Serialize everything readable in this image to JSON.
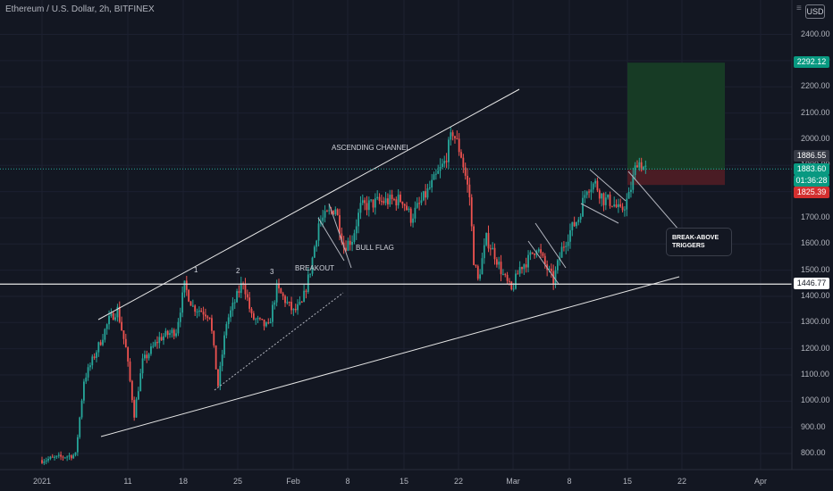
{
  "header": {
    "title": "Ethereum / U.S. Dollar, 2h, BITFINEX",
    "currency_button": "USD",
    "menu_icon": "hamburger-icon"
  },
  "chart_data": {
    "type": "candlestick",
    "symbol": "Ethereum / U.S. Dollar",
    "interval": "2h",
    "exchange": "BITFINEX",
    "y_ticks": [
      800,
      900,
      1000,
      1100,
      1200,
      1300,
      1400,
      1500,
      1600,
      1700,
      1800,
      1900,
      2000,
      2100,
      2200,
      2300,
      2400
    ],
    "y_tick_labels": [
      "800.00",
      "900.00",
      "1000.00",
      "1100.00",
      "1200.00",
      "1300.00",
      "1400.00",
      "1500.00",
      "1600.00",
      "1700.00",
      "1800.00",
      "1900.00",
      "2000.00",
      "2100.00",
      "2200.00",
      "2300.00",
      "2400.00"
    ],
    "ylim": [
      758,
      2590
    ],
    "x_ticks": [
      "2021",
      "11",
      "18",
      "25",
      "Feb",
      "8",
      "15",
      "22",
      "Mar",
      "8",
      "15",
      "22",
      "Apr"
    ],
    "anchors": [
      {
        "d": 0,
        "p": 775
      },
      {
        "d": 4,
        "p": 795
      },
      {
        "d": 5,
        "p": 1080
      },
      {
        "d": 7,
        "p": 1230
      },
      {
        "d": 8,
        "p": 1310
      },
      {
        "d": 9,
        "p": 1350
      },
      {
        "d": 10,
        "p": 1200
      },
      {
        "d": 11,
        "p": 950
      },
      {
        "d": 12,
        "p": 1150
      },
      {
        "d": 14,
        "p": 1240
      },
      {
        "d": 16,
        "p": 1270
      },
      {
        "d": 17,
        "p": 1440
      },
      {
        "d": 18,
        "p": 1360
      },
      {
        "d": 20,
        "p": 1330
      },
      {
        "d": 21,
        "p": 1060
      },
      {
        "d": 22,
        "p": 1300
      },
      {
        "d": 24,
        "p": 1460
      },
      {
        "d": 25,
        "p": 1320
      },
      {
        "d": 27,
        "p": 1280
      },
      {
        "d": 28,
        "p": 1430
      },
      {
        "d": 30,
        "p": 1340
      },
      {
        "d": 31,
        "p": 1370
      },
      {
        "d": 32,
        "p": 1500
      },
      {
        "d": 33,
        "p": 1680
      },
      {
        "d": 35,
        "p": 1740
      },
      {
        "d": 36,
        "p": 1590
      },
      {
        "d": 37,
        "p": 1620
      },
      {
        "d": 38,
        "p": 1740
      },
      {
        "d": 40,
        "p": 1760
      },
      {
        "d": 43,
        "p": 1770
      },
      {
        "d": 44,
        "p": 1700
      },
      {
        "d": 46,
        "p": 1800
      },
      {
        "d": 48,
        "p": 1910
      },
      {
        "d": 49,
        "p": 2030
      },
      {
        "d": 50,
        "p": 1940
      },
      {
        "d": 51,
        "p": 1780
      },
      {
        "d": 51.5,
        "p": 1540
      },
      {
        "d": 52,
        "p": 1460
      },
      {
        "d": 53,
        "p": 1620
      },
      {
        "d": 54,
        "p": 1560
      },
      {
        "d": 55,
        "p": 1480
      },
      {
        "d": 56,
        "p": 1420
      },
      {
        "d": 57,
        "p": 1510
      },
      {
        "d": 58,
        "p": 1540
      },
      {
        "d": 59,
        "p": 1590
      },
      {
        "d": 60,
        "p": 1520
      },
      {
        "d": 61,
        "p": 1460
      },
      {
        "d": 62,
        "p": 1580
      },
      {
        "d": 63,
        "p": 1650
      },
      {
        "d": 64,
        "p": 1700
      },
      {
        "d": 65,
        "p": 1820
      },
      {
        "d": 66,
        "p": 1830
      },
      {
        "d": 67,
        "p": 1770
      },
      {
        "d": 68,
        "p": 1760
      },
      {
        "d": 69,
        "p": 1720
      },
      {
        "d": 70,
        "p": 1780
      },
      {
        "d": 71,
        "p": 1920
      },
      {
        "d": 72,
        "p": 1884
      }
    ],
    "price_levels": {
      "take_profit": 2292.12,
      "last_price": 1883.6,
      "prev_level": 1886.55,
      "stop_loss": 1825.39,
      "support": 1446.77
    }
  },
  "price_labels": {
    "take_profit": "2292.12",
    "last_price": "1883.60",
    "countdown": "01:36:28",
    "prev_level": "1886.55",
    "stop_loss": "1825.39",
    "support": "1446.77"
  },
  "annotations": {
    "ascending_channel": "ASCENDING CHANNEL",
    "bull_flag": "BULL FLAG",
    "breakout": "BREAKOUT",
    "n1": "1",
    "n2": "2",
    "n3": "3",
    "callout": "BREAK-ABOVE TRIGGERS"
  },
  "colors": {
    "background": "#131722",
    "up": "#26a69a",
    "down": "#ef5350",
    "profit_zone": "#173b25",
    "loss_zone": "#4a1c24",
    "take_profit_label": "#089981",
    "stop_loss_label": "#d32f2f",
    "last_price_label": "#089981"
  }
}
